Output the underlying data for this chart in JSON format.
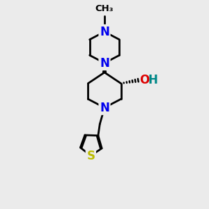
{
  "background_color": "#ebebeb",
  "atom_colors": {
    "N": "#0000ee",
    "O": "#dd0000",
    "S": "#bbbb00",
    "C": "#000000",
    "H": "#008888"
  },
  "bond_color": "#000000",
  "bond_width": 2.0,
  "title": "",
  "xlim": [
    0,
    10
  ],
  "ylim": [
    0,
    13
  ],
  "figsize": [
    3.0,
    3.0
  ],
  "dpi": 100
}
